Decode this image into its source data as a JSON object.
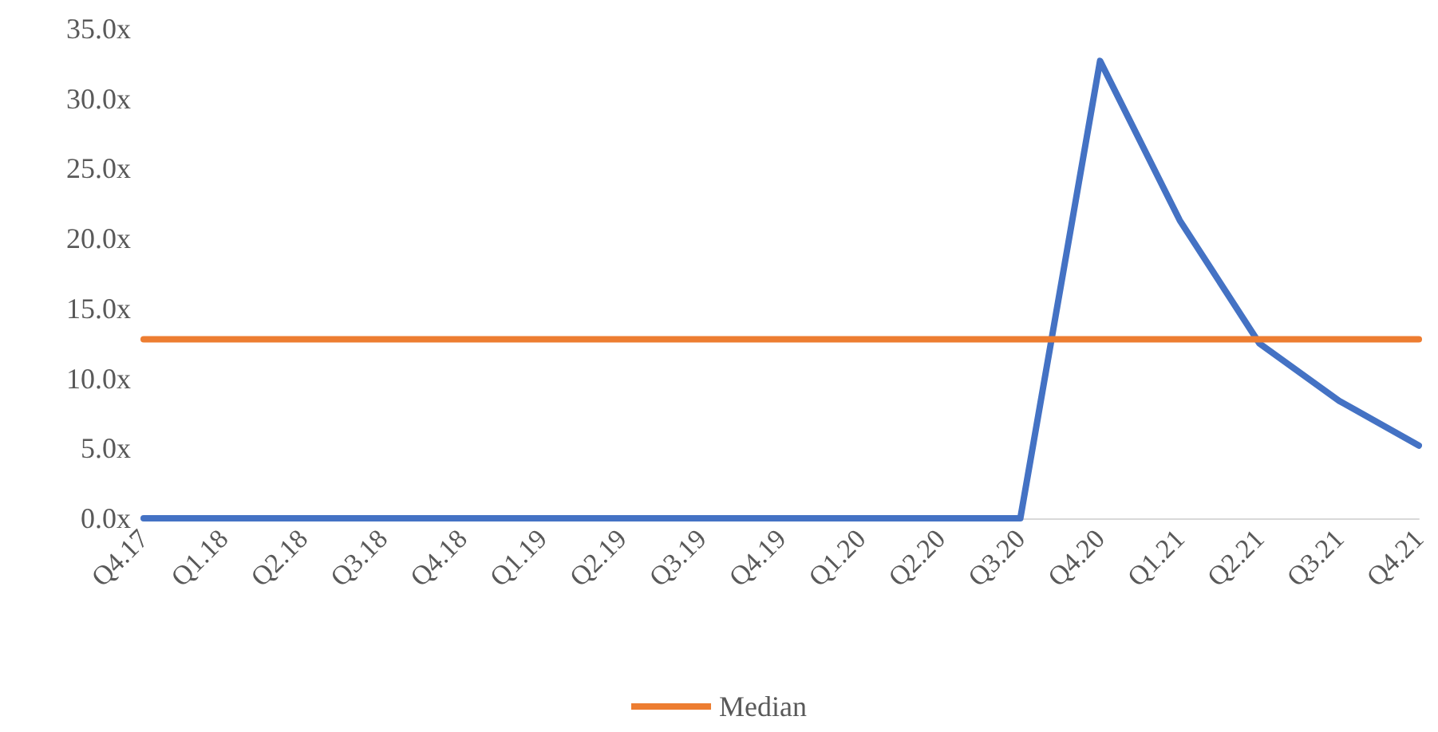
{
  "chart_data": {
    "type": "line",
    "categories": [
      "Q4.17",
      "Q1.18",
      "Q2.18",
      "Q3.18",
      "Q4.18",
      "Q1.19",
      "Q2.19",
      "Q3.19",
      "Q4.19",
      "Q1.20",
      "Q2.20",
      "Q3.20",
      "Q4.20",
      "Q1.21",
      "Q2.21",
      "Q3.21",
      "Q4.21"
    ],
    "series": [
      {
        "color": "#4472c4",
        "values": [
          0,
          0,
          0,
          0,
          0,
          0,
          0,
          0,
          0,
          0,
          0,
          0,
          32.7,
          21.3,
          12.5,
          8.4,
          5.2
        ]
      },
      {
        "name": "Median",
        "color": "#ed7d31",
        "values": [
          12.8,
          12.8,
          12.8,
          12.8,
          12.8,
          12.8,
          12.8,
          12.8,
          12.8,
          12.8,
          12.8,
          12.8,
          12.8,
          12.8,
          12.8,
          12.8,
          12.8
        ]
      }
    ],
    "ylim": [
      0,
      35
    ],
    "yticks": [
      {
        "value": 0,
        "label": "0.0x"
      },
      {
        "value": 5,
        "label": "5.0x"
      },
      {
        "value": 10,
        "label": "10.0x"
      },
      {
        "value": 15,
        "label": "15.0x"
      },
      {
        "value": 20,
        "label": "20.0x"
      },
      {
        "value": 25,
        "label": "25.0x"
      },
      {
        "value": 30,
        "label": "30.0x"
      },
      {
        "value": 35,
        "label": "35.0x"
      }
    ],
    "grid": false,
    "legend": "bottom",
    "marker": "none",
    "line_style": "solid"
  }
}
